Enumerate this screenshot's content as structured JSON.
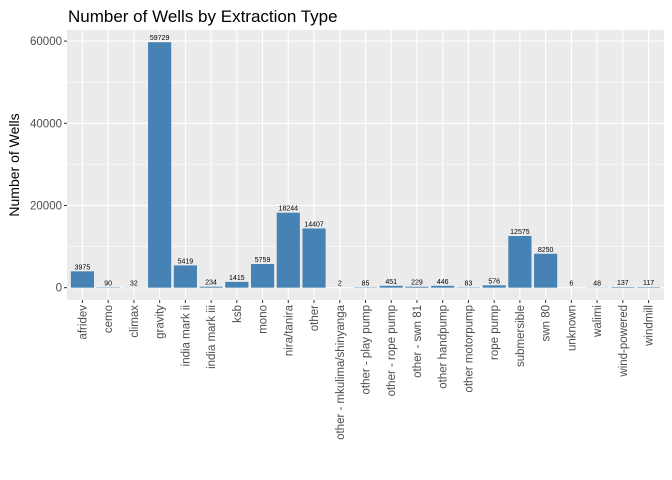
{
  "chart_data": {
    "type": "bar",
    "title": "Number of Wells by Extraction Type",
    "xlabel": "",
    "ylabel": "Number of Wells",
    "ylim": [
      -3000,
      62700
    ],
    "yticks": [
      0,
      20000,
      40000,
      60000
    ],
    "grid": true,
    "bar_color": "#4682B4",
    "panel_color": "#EBEBEB",
    "categories": [
      "afridev",
      "cemo",
      "climax",
      "gravity",
      "india mark ii",
      "india mark iii",
      "ksb",
      "mono",
      "nira/tanira",
      "other",
      "other - mkulima/shinyanga",
      "other - play pump",
      "other - rope pump",
      "other - swn 81",
      "other handpump",
      "other motorpump",
      "rope pump",
      "submersible",
      "swn 80",
      "unknown",
      "walimi",
      "wind-powered",
      "windmill"
    ],
    "values": [
      3975,
      90,
      32,
      59729,
      5419,
      234,
      1415,
      5759,
      18244,
      14407,
      2,
      85,
      451,
      229,
      446,
      83,
      576,
      12575,
      8250,
      6,
      48,
      137,
      117
    ],
    "value_labels": [
      "3975",
      "90",
      "32",
      "59729",
      "5419",
      "234",
      "1415",
      "5759",
      "18244",
      "14407",
      "2",
      "85",
      "451",
      "229",
      "446",
      "83",
      "576",
      "12575",
      "8250",
      "6",
      "48",
      "137",
      "117"
    ]
  }
}
